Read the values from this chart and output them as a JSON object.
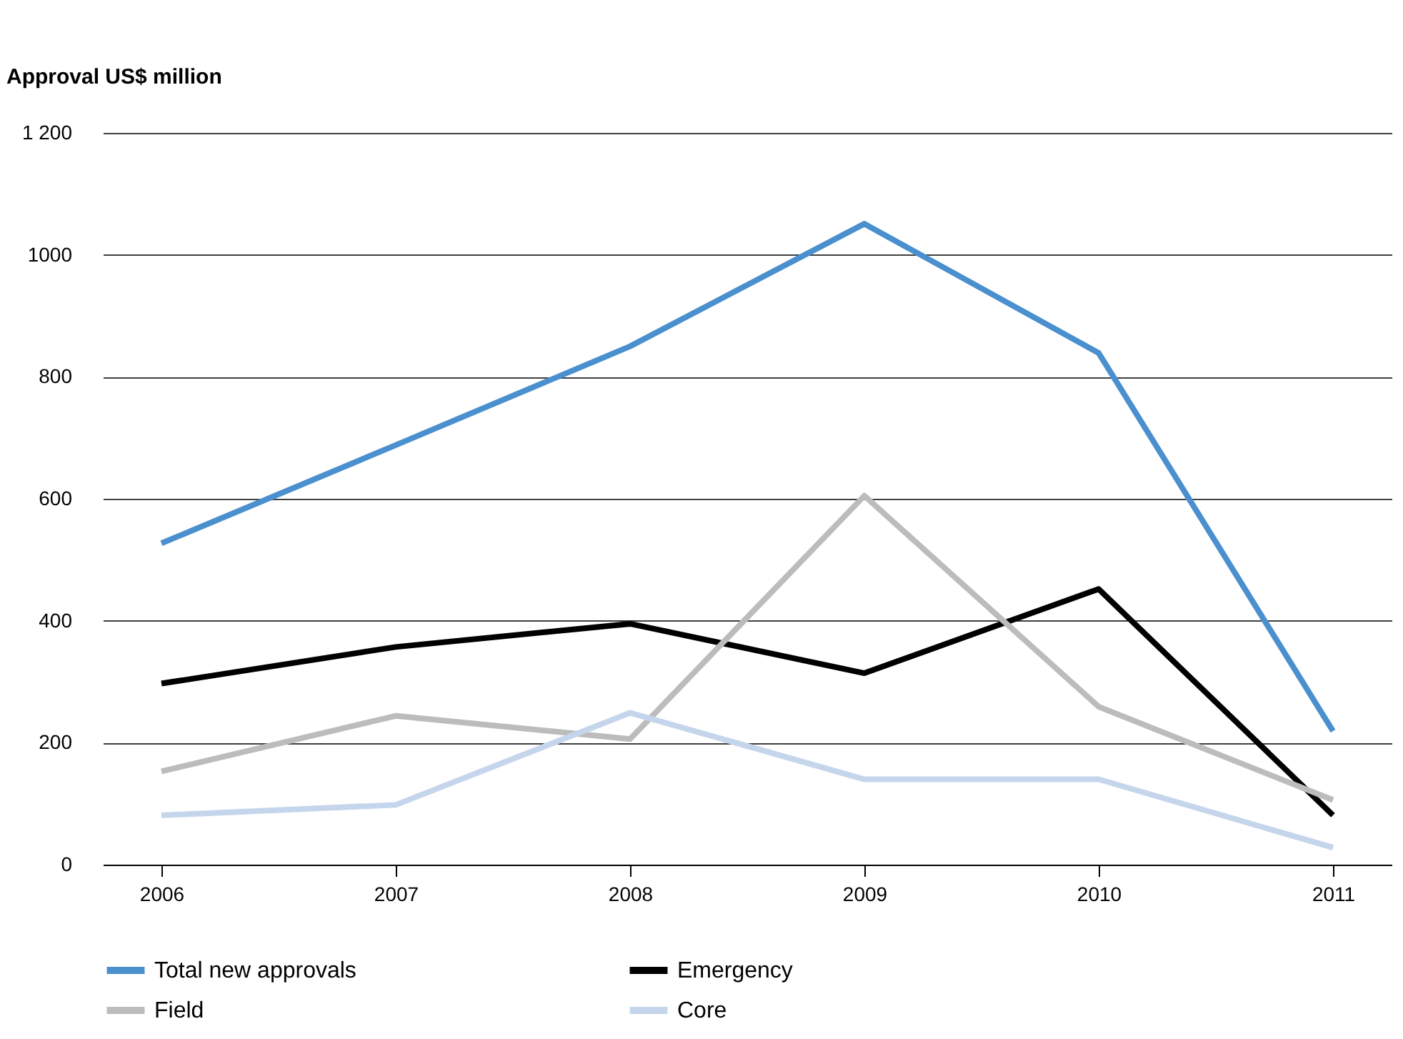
{
  "chart_data": {
    "type": "line",
    "ylabel": "Approval US$ million",
    "categories": [
      "2006",
      "2007",
      "2008",
      "2009",
      "2010",
      "2011"
    ],
    "series": [
      {
        "name": "Total new approvals",
        "color": "#4a8fce",
        "values": [
          527,
          688,
          850,
          1051,
          839,
          219
        ]
      },
      {
        "name": "Emergency",
        "color": "#000000",
        "values": [
          297,
          357,
          395,
          314,
          452,
          81
        ]
      },
      {
        "name": "Field",
        "color": "#bcbcbc",
        "values": [
          153,
          244,
          206,
          605,
          259,
          106
        ]
      },
      {
        "name": "Core",
        "color": "#c5d5ec",
        "values": [
          81,
          98,
          249,
          140,
          140,
          28
        ]
      }
    ],
    "ylim": [
      0,
      1200
    ],
    "yticks": [
      0,
      200,
      400,
      600,
      800,
      1000,
      {
        "value": 1200,
        "label": "1 200"
      }
    ],
    "grid": "y",
    "legend": "bottom",
    "marker": "none",
    "line_style": "solid"
  }
}
